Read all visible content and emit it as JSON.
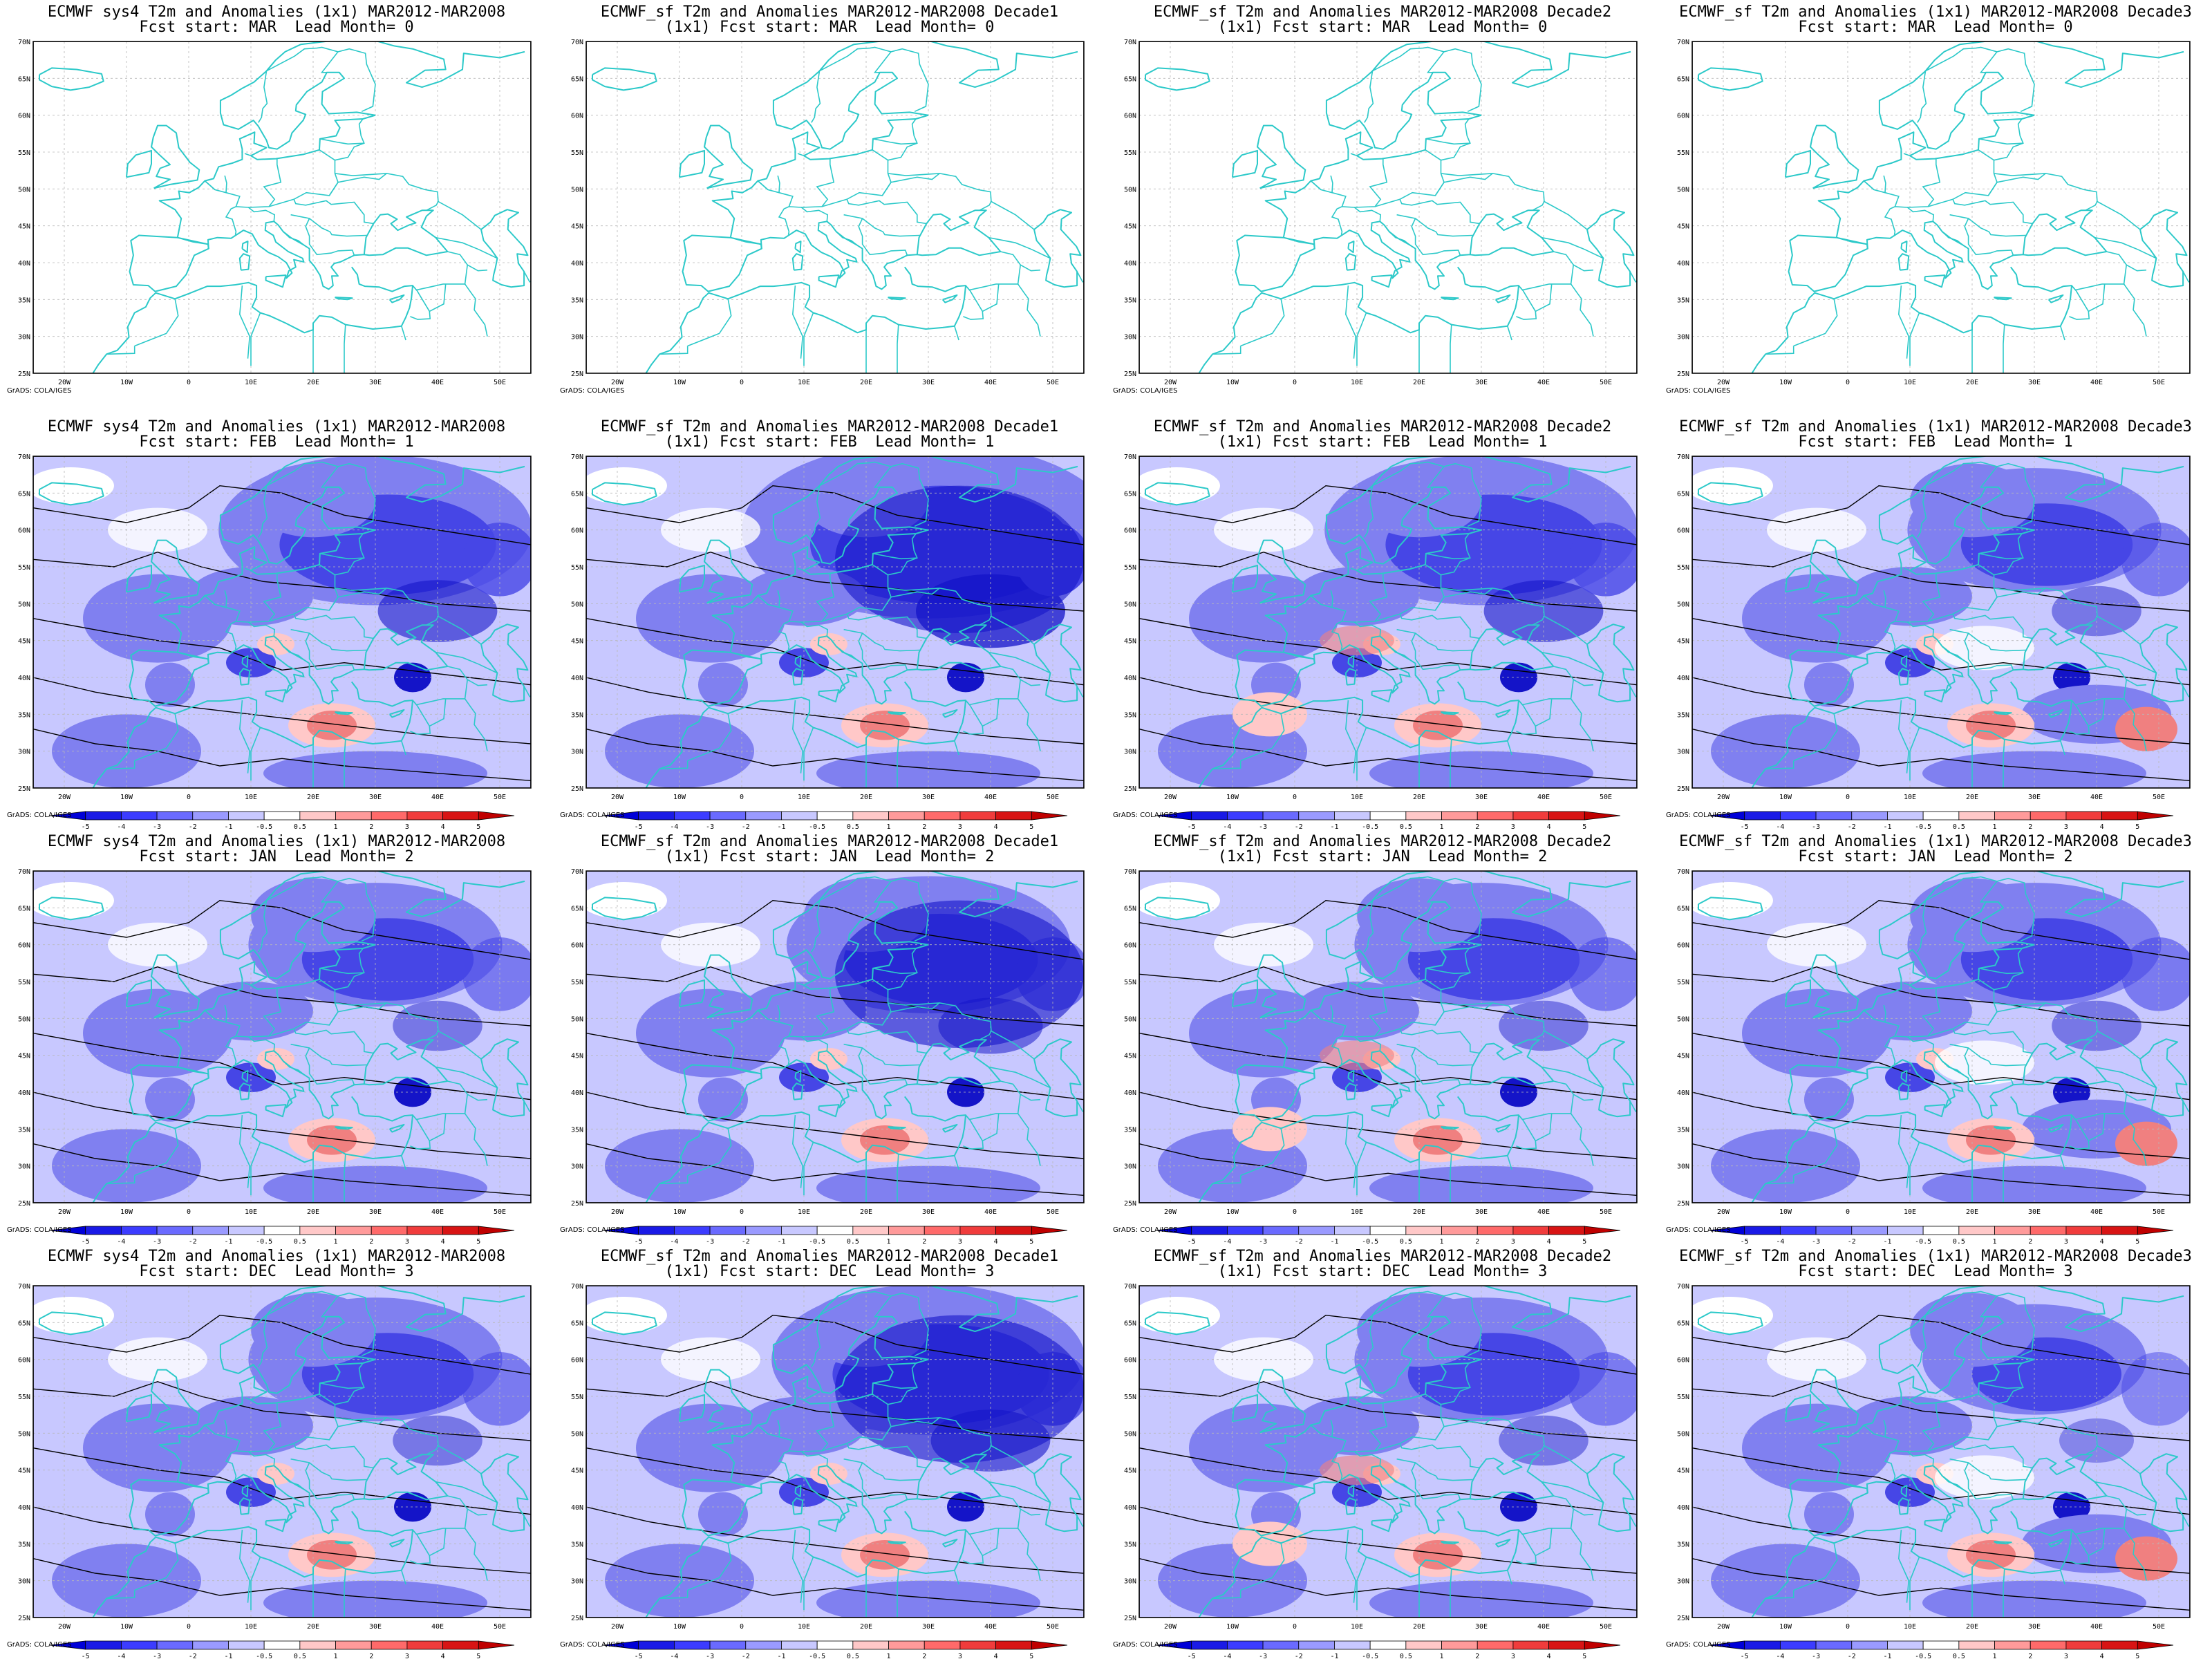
{
  "credit": "GrADS: COLA/IGES",
  "lat_labels": [
    "70N",
    "65N",
    "60N",
    "55N",
    "50N",
    "45N",
    "40N",
    "35N",
    "30N",
    "25N"
  ],
  "lon_labels": [
    "20W",
    "10W",
    "0",
    "10E",
    "20E",
    "30E",
    "40E",
    "50E"
  ],
  "colorbar": {
    "ticks": [
      "-5",
      "-4",
      "-3",
      "-2",
      "-1",
      "-0.5",
      "0.5",
      "1",
      "2",
      "3",
      "4",
      "5"
    ],
    "colors": [
      "#0000d8",
      "#1a1ae6",
      "#3c3cff",
      "#6a6aff",
      "#9a9aff",
      "#c8c8ff",
      "#ffffff",
      "#ffc8c8",
      "#ff9a9a",
      "#ff6a6a",
      "#f03c3c",
      "#d81414",
      "#c00000"
    ]
  },
  "colors": {
    "coast": "#2cc9c9",
    "contour": "#000000",
    "cold_light": "#c8c8ff",
    "cold_mid": "#8080f0",
    "cold_strong": "#4646e6",
    "cold_deep": "#1414c8",
    "warm_light": "#ffc8c8",
    "warm_mid": "#f08080",
    "warm_strong": "#e04040"
  },
  "rows": [
    {
      "lead": "MAR",
      "month": "0",
      "panels": [
        {
          "title1": "ECMWF sys4 T2m and Anomalies (1x1) MAR2012-MAR2008",
          "title2": "Fcst start: MAR  Lead Month= 0",
          "anomaly": false
        },
        {
          "title1": "ECMWF_sf T2m and Anomalies MAR2012-MAR2008 Decade1",
          "title2": "(1x1) Fcst start: MAR  Lead Month= 0",
          "anomaly": false
        },
        {
          "title1": "ECMWF_sf T2m and Anomalies MAR2012-MAR2008 Decade2",
          "title2": "(1x1) Fcst start: MAR  Lead Month= 0",
          "anomaly": false
        },
        {
          "title1": "ECMWF_sf T2m and Anomalies (1x1) MAR2012-MAR2008 Decade3",
          "title2": "Fcst start: MAR  Lead Month= 0",
          "anomaly": false
        }
      ]
    },
    {
      "lead": "FEB",
      "month": "1",
      "panels": [
        {
          "title1": "ECMWF sys4 T2m and Anomalies (1x1) MAR2012-MAR2008",
          "title2": "Fcst start: FEB  Lead Month= 1",
          "anomaly": true,
          "strength": 0.8
        },
        {
          "title1": "ECMWF_sf T2m and Anomalies MAR2012-MAR2008 Decade1",
          "title2": "(1x1) Fcst start: FEB  Lead Month= 1",
          "anomaly": true,
          "strength": 1.0
        },
        {
          "title1": "ECMWF_sf T2m and Anomalies MAR2012-MAR2008 Decade2",
          "title2": "(1x1) Fcst start: FEB  Lead Month= 1",
          "anomaly": true,
          "strength": 0.8
        },
        {
          "title1": "ECMWF_sf T2m and Anomalies (1x1) MAR2012-MAR2008 Decade3",
          "title2": "Fcst start: FEB  Lead Month= 1",
          "anomaly": true,
          "strength": 0.6
        }
      ]
    },
    {
      "lead": "JAN",
      "month": "2",
      "panels": [
        {
          "title1": "ECMWF sys4 T2m and Anomalies (1x1) MAR2012-MAR2008",
          "title2": "Fcst start: JAN  Lead Month= 2",
          "anomaly": true,
          "strength": 0.6
        },
        {
          "title1": "ECMWF_sf T2m and Anomalies MAR2012-MAR2008 Decade1",
          "title2": "(1x1) Fcst start: JAN  Lead Month= 2",
          "anomaly": true,
          "strength": 0.7
        },
        {
          "title1": "ECMWF_sf T2m and Anomalies MAR2012-MAR2008 Decade2",
          "title2": "(1x1) Fcst start: JAN  Lead Month= 2",
          "anomaly": true,
          "strength": 0.6
        },
        {
          "title1": "ECMWF_sf T2m and Anomalies (1x1) MAR2012-MAR2008 Decade3",
          "title2": "Fcst start: JAN  Lead Month= 2",
          "anomaly": true,
          "strength": 0.6
        }
      ]
    },
    {
      "lead": "DEC",
      "month": "3",
      "panels": [
        {
          "title1": "ECMWF sys4 T2m and Anomalies (1x1) MAR2012-MAR2008",
          "title2": "Fcst start: DEC  Lead Month= 3",
          "anomaly": true,
          "strength": 0.6
        },
        {
          "title1": "ECMWF_sf T2m and Anomalies MAR2012-MAR2008 Decade1",
          "title2": "(1x1) Fcst start: DEC  Lead Month= 3",
          "anomaly": true,
          "strength": 0.8
        },
        {
          "title1": "ECMWF_sf T2m and Anomalies MAR2012-MAR2008 Decade2",
          "title2": "(1x1) Fcst start: DEC  Lead Month= 3",
          "anomaly": true,
          "strength": 0.6
        },
        {
          "title1": "ECMWF_sf T2m and Anomalies (1x1) MAR2012-MAR2008 Decade3",
          "title2": "Fcst start: DEC  Lead Month= 3",
          "anomaly": true,
          "strength": 0.5
        }
      ]
    }
  ]
}
